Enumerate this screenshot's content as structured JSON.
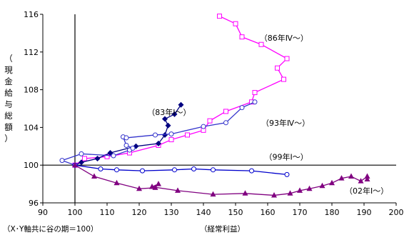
{
  "chart_data": {
    "type": "line",
    "xlabel": "（経常利益）",
    "ylabel_chars": [
      "（",
      "現",
      "金",
      "給",
      "与",
      "総",
      "額",
      "）"
    ],
    "note": "（X･Y軸共に谷の期＝100）",
    "xlim": [
      90,
      200
    ],
    "ylim": [
      96,
      116
    ],
    "xticks": [
      90,
      100,
      110,
      120,
      130,
      140,
      150,
      160,
      170,
      180,
      190,
      200
    ],
    "yticks": [
      96,
      100,
      104,
      108,
      112,
      116
    ],
    "crosshair": {
      "x": 100,
      "y": 100
    },
    "series": [
      {
        "name": "（86年Ⅳ～）",
        "color": "#ff00ff",
        "marker": "square-open",
        "label_at": [
          157.5,
          113.2
        ],
        "points": [
          [
            100,
            100
          ],
          [
            103,
            100.7
          ],
          [
            110,
            100.9
          ],
          [
            117,
            101.3
          ],
          [
            126,
            102.1
          ],
          [
            130,
            102.7
          ],
          [
            135,
            103.2
          ],
          [
            140,
            103.7
          ],
          [
            142,
            104.7
          ],
          [
            147,
            105.7
          ],
          [
            155,
            106.7
          ],
          [
            156,
            107.7
          ],
          [
            165,
            109.1
          ],
          [
            163,
            110.3
          ],
          [
            166,
            111.3
          ],
          [
            158,
            112.8
          ],
          [
            152,
            113.6
          ],
          [
            150,
            115.0
          ],
          [
            145,
            115.8
          ]
        ]
      },
      {
        "name": "（83年Ⅰ～）",
        "color": "#000080",
        "marker": "diamond-filled",
        "label_at": [
          122.5,
          105.3
        ],
        "points": [
          [
            100,
            100
          ],
          [
            102,
            100.3
          ],
          [
            107,
            100.7
          ],
          [
            111,
            101.3
          ],
          [
            119,
            102.0
          ],
          [
            126,
            102.3
          ],
          [
            128,
            103.2
          ],
          [
            129,
            104.2
          ],
          [
            128,
            104.9
          ],
          [
            131,
            105.4
          ],
          [
            133,
            106.4
          ]
        ]
      },
      {
        "name": "（93年Ⅳ～）",
        "color": "#3333cc",
        "marker": "circle-open",
        "label_at": [
          158,
          104.2
        ],
        "points": [
          [
            100,
            100
          ],
          [
            96,
            100.5
          ],
          [
            102,
            101.2
          ],
          [
            112,
            101.0
          ],
          [
            117,
            101.6
          ],
          [
            118,
            101.8
          ],
          [
            116,
            102.1
          ],
          [
            115,
            103.0
          ],
          [
            116,
            102.9
          ],
          [
            125,
            103.2
          ],
          [
            130,
            103.3
          ],
          [
            140,
            104.1
          ],
          [
            147,
            104.5
          ],
          [
            152,
            106.1
          ],
          [
            156,
            106.7
          ]
        ]
      },
      {
        "name": "（99年Ⅰ～）",
        "color": "#0000cc",
        "marker": "circle-open",
        "label_at": [
          159,
          100.6
        ],
        "points": [
          [
            100,
            100
          ],
          [
            108,
            99.6
          ],
          [
            113,
            99.5
          ],
          [
            121,
            99.4
          ],
          [
            131,
            99.5
          ],
          [
            137,
            99.6
          ],
          [
            143,
            99.5
          ],
          [
            155,
            99.4
          ],
          [
            166,
            99.0
          ]
        ]
      },
      {
        "name": "（02年Ⅰ～）",
        "color": "#800080",
        "marker": "triangle-filled",
        "label_at": [
          184,
          97.0
        ],
        "points": [
          [
            100,
            100
          ],
          [
            106,
            98.8
          ],
          [
            113,
            98.1
          ],
          [
            120,
            97.5
          ],
          [
            125,
            97.6
          ],
          [
            126,
            98.0
          ],
          [
            124,
            97.7
          ],
          [
            132,
            97.3
          ],
          [
            143,
            96.9
          ],
          [
            153,
            97.0
          ],
          [
            162,
            96.8
          ],
          [
            167,
            97.0
          ],
          [
            170,
            97.3
          ],
          [
            173,
            97.5
          ],
          [
            177,
            97.8
          ],
          [
            180,
            98.1
          ],
          [
            183,
            98.6
          ],
          [
            186,
            98.8
          ],
          [
            189,
            98.3
          ],
          [
            191,
            98.8
          ],
          [
            191,
            98.5
          ]
        ]
      }
    ]
  }
}
